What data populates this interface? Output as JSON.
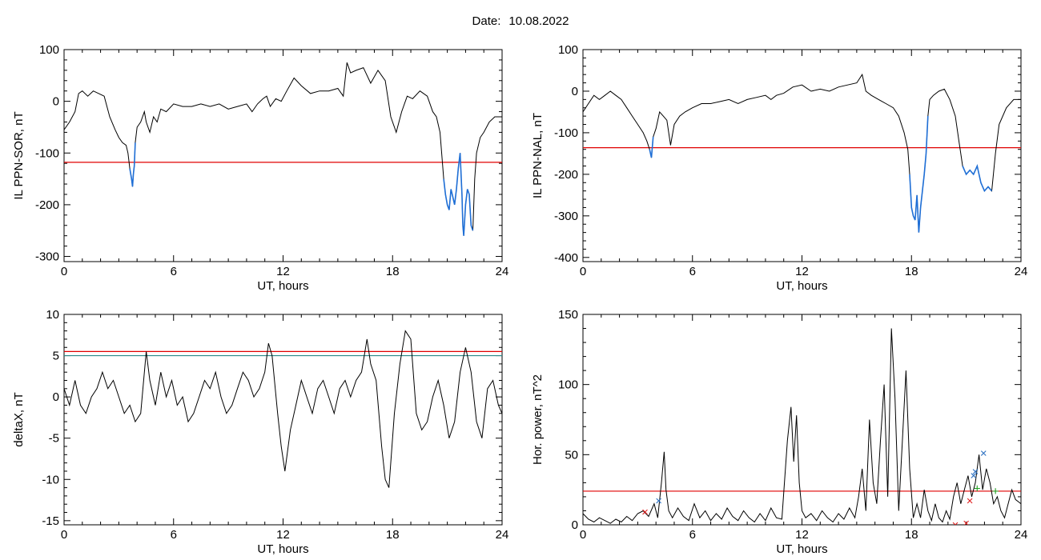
{
  "header": {
    "date_label": "Date:",
    "date_value": "10.08.2022"
  },
  "colors": {
    "trace": "#000000",
    "threshold": "#e00000",
    "threshold2": "#2a8a8a",
    "highlight": "#1f6fd6",
    "marker_red": "#e02020",
    "marker_blue": "#2a6fc0",
    "marker_green": "#20a020"
  },
  "chart_data": [
    {
      "id": "sor",
      "type": "line",
      "title": "",
      "xlabel": "UT, hours",
      "ylabel": "IL PPN-SOR, nT",
      "xlim": [
        0,
        24
      ],
      "ylim": [
        -310,
        100
      ],
      "xticks": [
        0,
        6,
        12,
        18,
        24
      ],
      "yticks": [
        100,
        0,
        -100,
        -200,
        -300
      ],
      "thresholds": [
        -118
      ],
      "series": [
        {
          "x": [
            0,
            0.3,
            0.6,
            0.8,
            1,
            1.3,
            1.6,
            1.9,
            2.2,
            2.5,
            2.8,
            3.0,
            3.2,
            3.4,
            3.5,
            3.6,
            3.7,
            3.75,
            3.8,
            3.85,
            3.9,
            4.0,
            4.2,
            4.4,
            4.5,
            4.7,
            4.9,
            5.1,
            5.3,
            5.6,
            6,
            6.5,
            7,
            7.5,
            8,
            8.5,
            9,
            9.5,
            10,
            10.3,
            10.6,
            10.9,
            11.1,
            11.3,
            11.6,
            11.9,
            12.2,
            12.6,
            13,
            13.5,
            14,
            14.5,
            15,
            15.3,
            15.5,
            15.7,
            16,
            16.4,
            16.8,
            17.2,
            17.6,
            17.9,
            18.2,
            18.5,
            18.8,
            19.1,
            19.5,
            19.9,
            20.2,
            20.4,
            20.6,
            20.8,
            20.9,
            21.0,
            21.1,
            21.2,
            21.3,
            21.4,
            21.5,
            21.6,
            21.7,
            21.8,
            21.85,
            21.9,
            22.0,
            22.1,
            22.2,
            22.3,
            22.4,
            22.5,
            22.6,
            22.8,
            23,
            23.3,
            23.6,
            24
          ],
          "y": [
            -55,
            -40,
            -20,
            15,
            20,
            10,
            20,
            15,
            10,
            -30,
            -55,
            -70,
            -80,
            -85,
            -100,
            -130,
            -150,
            -165,
            -140,
            -125,
            -80,
            -50,
            -40,
            -20,
            -40,
            -60,
            -30,
            -40,
            -15,
            -20,
            -5,
            -10,
            -10,
            -5,
            -10,
            -5,
            -15,
            -10,
            -5,
            -20,
            -5,
            5,
            10,
            -10,
            5,
            0,
            20,
            45,
            30,
            15,
            20,
            20,
            25,
            10,
            75,
            55,
            60,
            65,
            35,
            60,
            40,
            -30,
            -60,
            -20,
            10,
            5,
            20,
            10,
            -20,
            -30,
            -60,
            -150,
            -180,
            -200,
            -210,
            -170,
            -185,
            -200,
            -170,
            -130,
            -100,
            -180,
            -240,
            -260,
            -200,
            -170,
            -180,
            -240,
            -250,
            -150,
            -100,
            -70,
            -60,
            -40,
            -30,
            -30
          ],
          "highlight": [
            [
              3.6,
              3.95
            ],
            [
              20.75,
              22.45
            ]
          ]
        }
      ]
    },
    {
      "id": "nal",
      "type": "line",
      "title": "",
      "xlabel": "UT, hours",
      "ylabel": "IL PPN-NAL, nT",
      "xlim": [
        0,
        24
      ],
      "ylim": [
        -410,
        100
      ],
      "xticks": [
        0,
        6,
        12,
        18,
        24
      ],
      "yticks": [
        100,
        0,
        -100,
        -200,
        -300,
        -400
      ],
      "thresholds": [
        -136
      ],
      "series": [
        {
          "x": [
            0,
            0.3,
            0.6,
            0.9,
            1.2,
            1.5,
            1.8,
            2.1,
            2.4,
            2.7,
            3.0,
            3.3,
            3.5,
            3.65,
            3.75,
            3.85,
            4.0,
            4.2,
            4.4,
            4.6,
            4.8,
            5.0,
            5.3,
            5.6,
            6,
            6.5,
            7,
            7.5,
            8,
            8.5,
            9,
            9.5,
            10,
            10.3,
            10.6,
            11,
            11.5,
            12,
            12.5,
            13,
            13.5,
            14,
            14.5,
            15,
            15.3,
            15.5,
            15.8,
            16.2,
            16.6,
            17,
            17.3,
            17.6,
            17.8,
            17.9,
            18.0,
            18.1,
            18.2,
            18.3,
            18.4,
            18.5,
            18.6,
            18.7,
            18.8,
            18.9,
            19.0,
            19.2,
            19.5,
            19.8,
            20.1,
            20.4,
            20.6,
            20.8,
            21.0,
            21.2,
            21.4,
            21.6,
            21.8,
            22.0,
            22.2,
            22.4,
            22.6,
            22.8,
            23.2,
            23.6,
            24
          ],
          "y": [
            -50,
            -30,
            -10,
            -20,
            -10,
            0,
            -10,
            -20,
            -40,
            -60,
            -80,
            -100,
            -120,
            -140,
            -160,
            -110,
            -90,
            -50,
            -60,
            -70,
            -130,
            -80,
            -60,
            -50,
            -40,
            -30,
            -30,
            -25,
            -20,
            -30,
            -20,
            -15,
            -10,
            -20,
            -10,
            -5,
            10,
            15,
            0,
            5,
            0,
            10,
            15,
            20,
            40,
            0,
            -10,
            -20,
            -30,
            -40,
            -60,
            -100,
            -140,
            -200,
            -280,
            -300,
            -310,
            -250,
            -340,
            -280,
            -240,
            -200,
            -150,
            -60,
            -20,
            -10,
            0,
            5,
            -20,
            -60,
            -120,
            -180,
            -200,
            -190,
            -200,
            -180,
            -220,
            -240,
            -230,
            -240,
            -150,
            -80,
            -40,
            -20,
            -20
          ],
          "highlight": [
            [
              3.6,
              3.85
            ],
            [
              17.85,
              18.95
            ],
            [
              20.75,
              22.4
            ]
          ]
        }
      ]
    },
    {
      "id": "deltax",
      "type": "line",
      "title": "",
      "xlabel": "UT, hours",
      "ylabel": "deltaX, nT",
      "xlim": [
        0,
        24
      ],
      "ylim": [
        -15.5,
        10
      ],
      "xticks": [
        0,
        6,
        12,
        18,
        24
      ],
      "yticks": [
        10,
        5,
        0,
        -5,
        -10,
        -15
      ],
      "thresholds": [
        5.5,
        5.0
      ],
      "series": [
        {
          "x": [
            0,
            0.3,
            0.6,
            0.9,
            1.2,
            1.5,
            1.8,
            2.1,
            2.4,
            2.7,
            3.0,
            3.3,
            3.6,
            3.9,
            4.2,
            4.5,
            4.7,
            5.0,
            5.3,
            5.6,
            5.9,
            6.2,
            6.5,
            6.8,
            7.1,
            7.4,
            7.7,
            8.0,
            8.3,
            8.6,
            8.9,
            9.2,
            9.5,
            9.8,
            10.1,
            10.4,
            10.7,
            11.0,
            11.2,
            11.4,
            11.7,
            11.9,
            12.1,
            12.4,
            12.7,
            13.0,
            13.3,
            13.6,
            13.9,
            14.2,
            14.5,
            14.8,
            15.1,
            15.4,
            15.7,
            16.0,
            16.3,
            16.6,
            16.8,
            17.1,
            17.4,
            17.6,
            17.8,
            18.1,
            18.4,
            18.7,
            19.0,
            19.3,
            19.6,
            19.9,
            20.2,
            20.5,
            20.8,
            21.1,
            21.4,
            21.7,
            22.0,
            22.3,
            22.6,
            22.9,
            23.2,
            23.5,
            23.8,
            24
          ],
          "y": [
            1,
            -1,
            2,
            -1,
            -2,
            0,
            1,
            3,
            1,
            2,
            0,
            -2,
            -1,
            -3,
            -2,
            5.5,
            2,
            -1,
            3,
            0,
            2,
            -1,
            0,
            -3,
            -2,
            0,
            2,
            1,
            3,
            0,
            -2,
            -1,
            1,
            3,
            2,
            0,
            1,
            3,
            6.5,
            5,
            -2,
            -6,
            -9,
            -4,
            -1,
            2,
            0,
            -2,
            1,
            2,
            0,
            -2,
            1,
            2,
            0,
            2,
            3,
            7,
            4,
            2,
            -6,
            -10,
            -11,
            -2,
            4,
            8,
            7,
            -2,
            -4,
            -3,
            0,
            2,
            -1,
            -5,
            -3,
            3,
            6,
            3,
            -3,
            -5,
            1,
            2,
            -1,
            -2
          ]
        }
      ]
    },
    {
      "id": "power",
      "type": "line",
      "title": "",
      "xlabel": "UT, hours",
      "ylabel": "Hor. power, nT^2",
      "xlim": [
        0,
        24
      ],
      "ylim": [
        0,
        150
      ],
      "xticks": [
        0,
        6,
        12,
        18,
        24
      ],
      "yticks": [
        150,
        100,
        50,
        0
      ],
      "thresholds": [
        24
      ],
      "series": [
        {
          "x": [
            0,
            0.3,
            0.6,
            0.9,
            1.2,
            1.5,
            1.8,
            2.1,
            2.4,
            2.7,
            3.0,
            3.3,
            3.6,
            3.9,
            4.1,
            4.3,
            4.45,
            4.55,
            4.7,
            4.9,
            5.2,
            5.5,
            5.8,
            6.1,
            6.4,
            6.7,
            7.0,
            7.3,
            7.6,
            7.9,
            8.2,
            8.5,
            8.8,
            9.1,
            9.4,
            9.7,
            10.0,
            10.3,
            10.6,
            10.9,
            11.2,
            11.4,
            11.55,
            11.7,
            11.85,
            12.0,
            12.2,
            12.5,
            12.8,
            13.1,
            13.4,
            13.7,
            14.0,
            14.3,
            14.6,
            14.9,
            15.1,
            15.3,
            15.5,
            15.7,
            15.9,
            16.1,
            16.3,
            16.5,
            16.7,
            16.9,
            17.1,
            17.3,
            17.5,
            17.7,
            17.9,
            18.1,
            18.3,
            18.5,
            18.7,
            18.9,
            19.1,
            19.3,
            19.5,
            19.7,
            19.9,
            20.1,
            20.3,
            20.5,
            20.7,
            20.9,
            21.1,
            21.3,
            21.5,
            21.7,
            21.9,
            22.1,
            22.3,
            22.5,
            22.7,
            22.9,
            23.1,
            23.3,
            23.5,
            23.7,
            24
          ],
          "y": [
            8,
            4,
            2,
            5,
            3,
            1,
            4,
            2,
            6,
            3,
            8,
            10,
            6,
            15,
            5,
            30,
            52,
            25,
            10,
            5,
            12,
            6,
            3,
            15,
            5,
            10,
            3,
            8,
            4,
            12,
            6,
            3,
            10,
            5,
            2,
            8,
            3,
            12,
            5,
            4,
            60,
            84,
            45,
            78,
            30,
            10,
            5,
            8,
            3,
            10,
            5,
            2,
            8,
            4,
            12,
            5,
            20,
            40,
            10,
            75,
            30,
            15,
            60,
            100,
            20,
            140,
            90,
            10,
            60,
            110,
            40,
            5,
            15,
            5,
            25,
            10,
            3,
            15,
            5,
            2,
            10,
            4,
            20,
            30,
            15,
            25,
            35,
            20,
            30,
            50,
            25,
            40,
            30,
            15,
            20,
            10,
            5,
            15,
            25,
            18,
            15
          ]
        }
      ],
      "markers": [
        {
          "x": 3.4,
          "y": 9,
          "color": "marker_red",
          "glyph": "×"
        },
        {
          "x": 4.15,
          "y": 17,
          "color": "marker_blue",
          "glyph": "×"
        },
        {
          "x": 20.4,
          "y": 0,
          "color": "marker_red",
          "glyph": "×"
        },
        {
          "x": 21.0,
          "y": 1,
          "color": "marker_red",
          "glyph": "×"
        },
        {
          "x": 21.2,
          "y": 17,
          "color": "marker_red",
          "glyph": "×"
        },
        {
          "x": 21.4,
          "y": 35,
          "color": "marker_blue",
          "glyph": "×"
        },
        {
          "x": 21.5,
          "y": 38,
          "color": "marker_blue",
          "glyph": "×"
        },
        {
          "x": 21.95,
          "y": 51,
          "color": "marker_blue",
          "glyph": "×"
        },
        {
          "x": 21.6,
          "y": 26,
          "color": "marker_green",
          "glyph": "+"
        },
        {
          "x": 22.6,
          "y": 24,
          "color": "marker_green",
          "glyph": "+"
        }
      ]
    }
  ]
}
